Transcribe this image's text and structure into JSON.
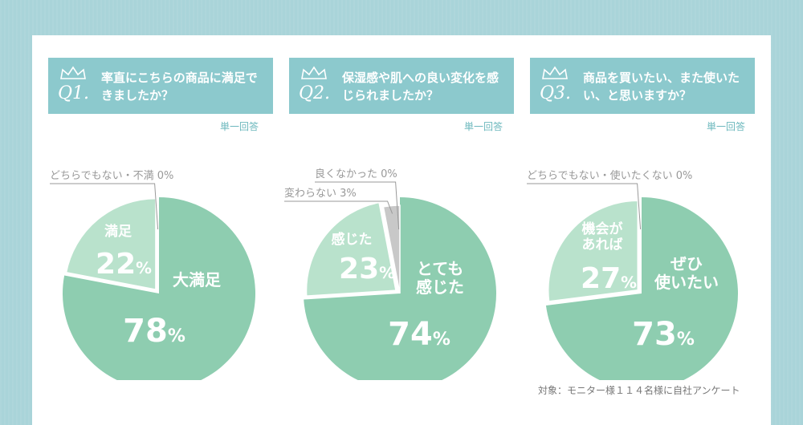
{
  "single_answer_label": "単一回答",
  "note": "対象：モニター様１１４名様に自社アンケート",
  "colors": {
    "big": "#8ecdb0",
    "mid": "#b9e2cc",
    "gray": "#c8c8c8",
    "header": "#8cc9cd",
    "label": "#999999"
  },
  "questions": [
    {
      "num": "Q1.",
      "text": "率直にこちらの商品に満足できましたか？"
    },
    {
      "num": "Q2.",
      "text": "保湿感や肌への良い変化を感じられましたか？"
    },
    {
      "num": "Q3.",
      "text": "商品を買いたい、また使いたい、と思いますか？"
    }
  ],
  "chart_data": [
    {
      "type": "pie",
      "categories": [
        "大満足",
        "満足",
        "どちらでもない・不満"
      ],
      "values": [
        78,
        22,
        0
      ],
      "display": {
        "big_label": "大満足",
        "big_value": "78",
        "mid_label": "満足",
        "mid_value": "22",
        "zero_label": "どちらでもない・不満 0%"
      }
    },
    {
      "type": "pie",
      "categories": [
        "とても感じた",
        "感じた",
        "変わらない",
        "良くなかった"
      ],
      "values": [
        74,
        23,
        3,
        0
      ],
      "display": {
        "big_label": "とても\n感じた",
        "big_value": "74",
        "mid_label": "感じた",
        "mid_value": "23",
        "three_label": "変わらない 3%",
        "zero_label": "良くなかった 0%"
      }
    },
    {
      "type": "pie",
      "categories": [
        "ぜひ使いたい",
        "機会があれば",
        "どちらでもない・使いたくない"
      ],
      "values": [
        73,
        27,
        0
      ],
      "display": {
        "big_label": "ぜひ\n使いたい",
        "big_value": "73",
        "mid_label": "機会が\nあれば",
        "mid_value": "27",
        "zero_label": "どちらでもない・使いたくない 0%"
      }
    }
  ]
}
